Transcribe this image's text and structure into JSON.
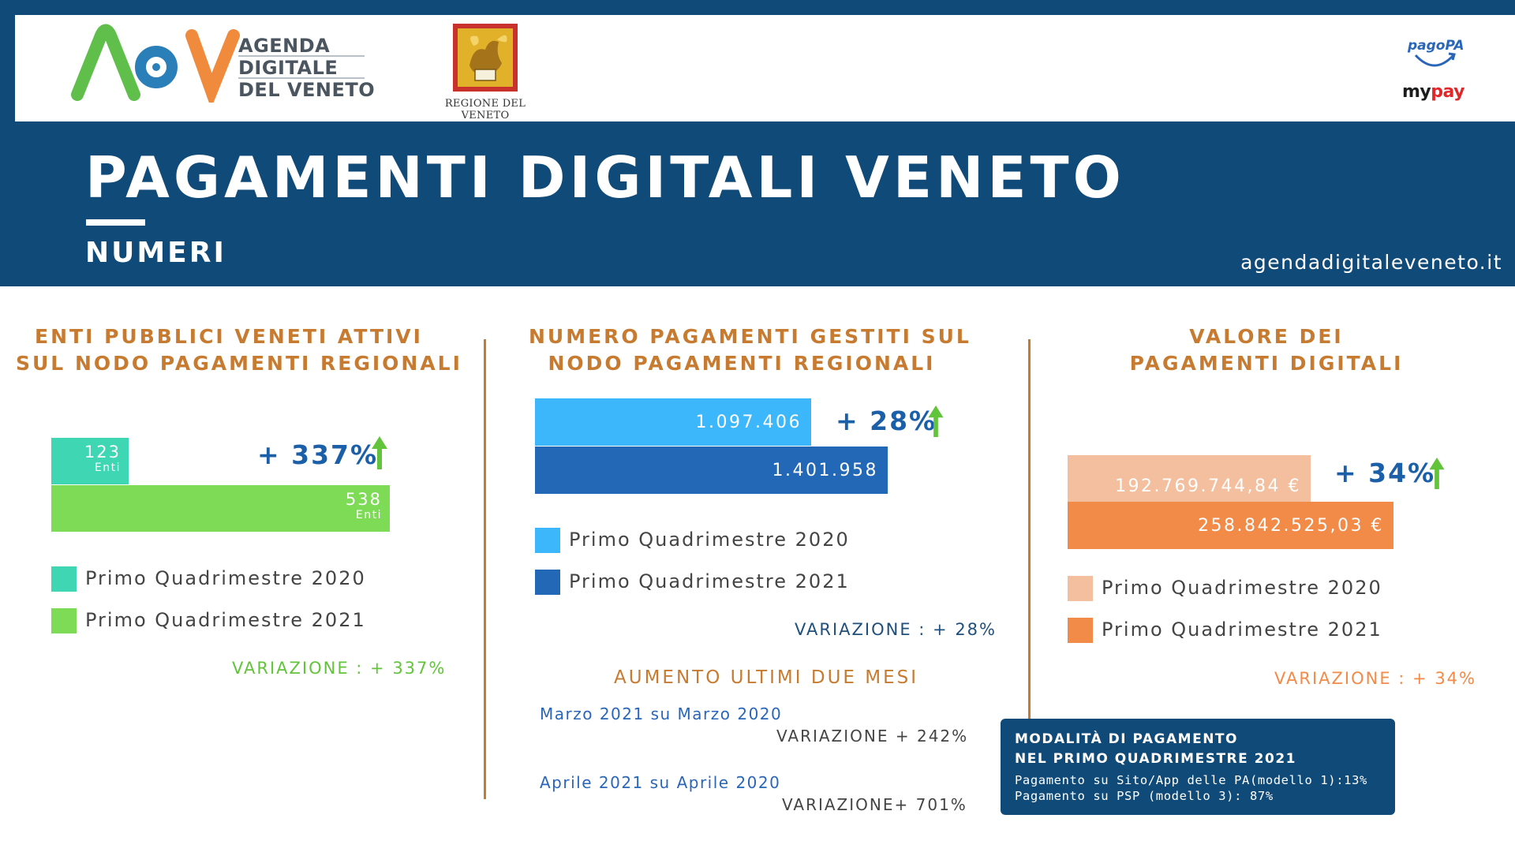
{
  "header": {
    "adv_text_lines": [
      "AGENDA",
      "DIGITALE",
      "DEL VENETO"
    ],
    "adv_logo_text": "ADV",
    "region_caption": "REGIONE DEL VENETO",
    "pagopa_label": "pagoPA",
    "mypay_my": "my",
    "mypay_pay": "pay",
    "title": "PAGAMENTI DIGITALI VENETO",
    "subtitle": "NUMERI",
    "site": "agendadigitaleveneto.it"
  },
  "colors": {
    "banner": "#0f4a78",
    "accent_orange": "#c77b31",
    "enti_2020": "#3fd6b4",
    "enti_2021": "#7ddb55",
    "pag_2020": "#3cb7fc",
    "pag_2021": "#2368b6",
    "val_2020": "#f3bf9e",
    "val_2021": "#f28a48",
    "percent_blue": "#1c5fa9",
    "arrow_green": "#62c43b"
  },
  "chart_data": [
    {
      "type": "bar",
      "orientation": "horizontal",
      "title_lines": [
        "ENTI PUBBLICI VENETI ATTIVI",
        "SUL NODO PAGAMENTI REGIONALI"
      ],
      "categories": [
        "Primo Quadrimestre 2020",
        "Primo Quadrimestre 2021"
      ],
      "values": [
        123,
        538
      ],
      "value_labels": [
        "123",
        "538"
      ],
      "unit_label": "Enti",
      "change_label": "+ 337%",
      "variation_label": "VARIAZIONE : + 337%",
      "legend": [
        "Primo Quadrimestre 2020",
        "Primo Quadrimestre 2021"
      ],
      "colors": [
        "#3fd6b4",
        "#7ddb55"
      ],
      "variation_color": "#62c43b"
    },
    {
      "type": "bar",
      "orientation": "horizontal",
      "title_lines": [
        "NUMERO PAGAMENTI GESTITI SUL",
        "NODO PAGAMENTI REGIONALI"
      ],
      "categories": [
        "Primo Quadrimestre 2020",
        "Primo Quadrimestre 2021"
      ],
      "values": [
        1097406,
        1401958
      ],
      "value_labels": [
        "1.097.406",
        "1.401.958"
      ],
      "change_label": "+ 28%",
      "variation_label": "VARIAZIONE : + 28%",
      "legend": [
        "Primo Quadrimestre 2020",
        "Primo Quadrimestre 2021"
      ],
      "colors": [
        "#3cb7fc",
        "#2368b6"
      ],
      "variation_color": "#1f4f7c"
    },
    {
      "type": "bar",
      "orientation": "horizontal",
      "title_lines": [
        "VALORE DEI",
        "PAGAMENTI DIGITALI"
      ],
      "categories": [
        "Primo Quadrimestre 2020",
        "Primo Quadrimestre 2021"
      ],
      "values": [
        192769744.84,
        258842525.03
      ],
      "value_labels": [
        "192.769.744,84 €",
        "258.842.525,03 €"
      ],
      "change_label": "+ 34%",
      "variation_label": "VARIAZIONE : + 34%",
      "legend": [
        "Primo Quadrimestre 2020",
        "Primo Quadrimestre 2021"
      ],
      "colors": [
        "#f3bf9e",
        "#f28a48"
      ],
      "variation_color": "#f28a48"
    }
  ],
  "increase": {
    "title": "AUMENTO ULTIMI DUE MESI",
    "rows": [
      {
        "label": "Marzo 2021 su Marzo 2020",
        "variation": "VARIAZIONE + 242%"
      },
      {
        "label": "Aprile 2021 su Aprile 2020",
        "variation": "VARIAZIONE+ 701%"
      }
    ]
  },
  "payment_mode": {
    "title_lines": [
      "MODALITÀ DI PAGAMENTO",
      "NEL PRIMO QUADRIMESTRE 2021"
    ],
    "lines": [
      "Pagamento su Sito/App delle PA(modello 1):13%",
      "Pagamento su PSP (modello 3): 87%"
    ]
  }
}
